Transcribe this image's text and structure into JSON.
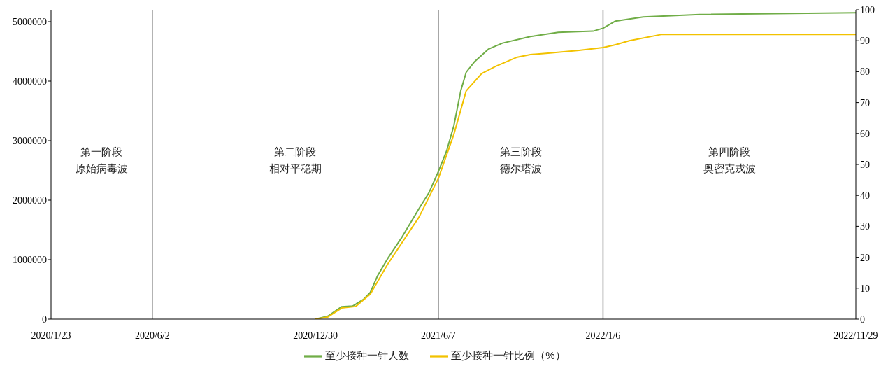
{
  "chart_data": {
    "type": "line",
    "xlim": [
      "2020-01-23",
      "2022-11-29"
    ],
    "xticks": [
      {
        "value": "2020-01-23",
        "label": "2020/1/23"
      },
      {
        "value": "2020-06-02",
        "label": "2020/6/2"
      },
      {
        "value": "2020-12-30",
        "label": "2020/12/30"
      },
      {
        "value": "2021-06-07",
        "label": "2021/6/7"
      },
      {
        "value": "2022-01-06",
        "label": "2022/1/6"
      },
      {
        "value": "2022-11-29",
        "label": "2022/11/29"
      }
    ],
    "ylim": [
      0,
      5200000
    ],
    "yticks": [
      0,
      1000000,
      2000000,
      3000000,
      4000000,
      5000000
    ],
    "y2lim": [
      0,
      100
    ],
    "y2ticks": [
      0,
      10,
      20,
      30,
      40,
      50,
      60,
      70,
      80,
      90,
      100
    ],
    "legend": "bottom",
    "grid": false,
    "series": [
      {
        "name": "至少接种一针人数",
        "color": "#70ad47",
        "axis": "y",
        "x": [
          "2020-12-30",
          "2021-01-15",
          "2021-02-02",
          "2021-02-16",
          "2021-03-02",
          "2021-03-11",
          "2021-03-20",
          "2021-04-02",
          "2021-04-20",
          "2021-05-13",
          "2021-05-26",
          "2021-06-07",
          "2021-06-18",
          "2021-06-27",
          "2021-07-06",
          "2021-07-13",
          "2021-07-24",
          "2021-08-11",
          "2021-08-29",
          "2021-10-04",
          "2021-11-09",
          "2021-12-24",
          "2022-01-06",
          "2022-01-22",
          "2022-02-27",
          "2022-05-11",
          "2022-11-29"
        ],
        "values": [
          0,
          50000,
          210000,
          220000,
          330000,
          450000,
          720000,
          1010000,
          1360000,
          1860000,
          2130000,
          2480000,
          2840000,
          3250000,
          3840000,
          4150000,
          4330000,
          4540000,
          4640000,
          4750000,
          4820000,
          4840000,
          4890000,
          5010000,
          5080000,
          5120000,
          5150000
        ]
      },
      {
        "name": "至少接种一针比例（%）",
        "color": "#f2c200",
        "axis": "y2",
        "x": [
          "2020-12-30",
          "2021-01-15",
          "2021-02-02",
          "2021-02-20",
          "2021-03-11",
          "2021-04-02",
          "2021-05-13",
          "2021-06-07",
          "2021-06-27",
          "2021-07-13",
          "2021-08-02",
          "2021-08-20",
          "2021-09-16",
          "2021-10-04",
          "2021-10-27",
          "2021-12-06",
          "2022-01-06",
          "2022-01-22",
          "2022-02-09",
          "2022-03-22",
          "2022-11-29"
        ],
        "values": [
          0,
          0.7,
          3.6,
          4.1,
          8.1,
          17.6,
          33,
          45.5,
          59.7,
          73.8,
          79.4,
          81.7,
          84.6,
          85.5,
          86,
          86.9,
          87.8,
          88.7,
          90,
          92,
          92
        ]
      }
    ],
    "ref_lines": [
      {
        "axis": "x",
        "value": "2020-06-02",
        "color": "#7f7f7f"
      },
      {
        "axis": "x",
        "value": "2021-06-07",
        "color": "#7f7f7f"
      },
      {
        "axis": "x",
        "value": "2022-01-06",
        "color": "#7f7f7f"
      }
    ],
    "annotations": [
      "第一阶段",
      "原始病毒波",
      "第二阶段",
      "相对平稳期",
      "第三阶段",
      "德尔塔波",
      "第四阶段",
      "奥密克戎波"
    ]
  }
}
